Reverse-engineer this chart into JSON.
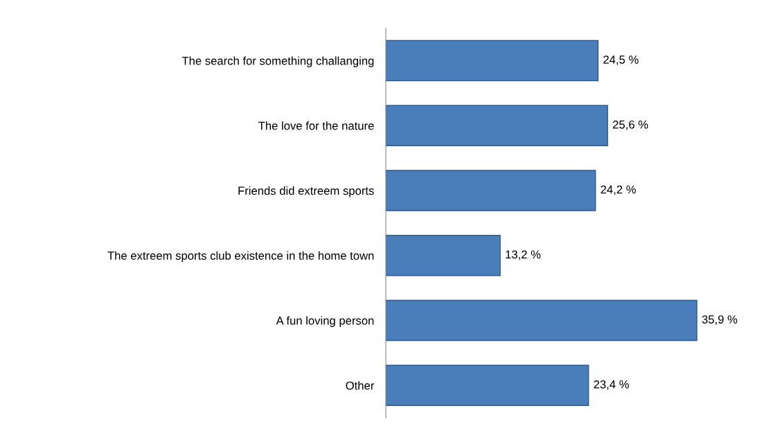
{
  "chart_data": {
    "type": "bar",
    "orientation": "horizontal",
    "categories": [
      "The search for something challanging",
      "The love for the nature",
      "Friends did extreem sports",
      "The extreem sports club existence in the home town",
      "A fun loving person",
      "Other"
    ],
    "values": [
      24.5,
      25.6,
      24.2,
      13.2,
      35.9,
      23.4
    ],
    "value_labels": [
      "24,5 %",
      "25,6 %",
      "24,2 %",
      "13,2 %",
      "35,9 %",
      "23,4 %"
    ],
    "color": "#4a7ebb",
    "tick_labels": "y",
    "grid": false,
    "legend": false
  }
}
